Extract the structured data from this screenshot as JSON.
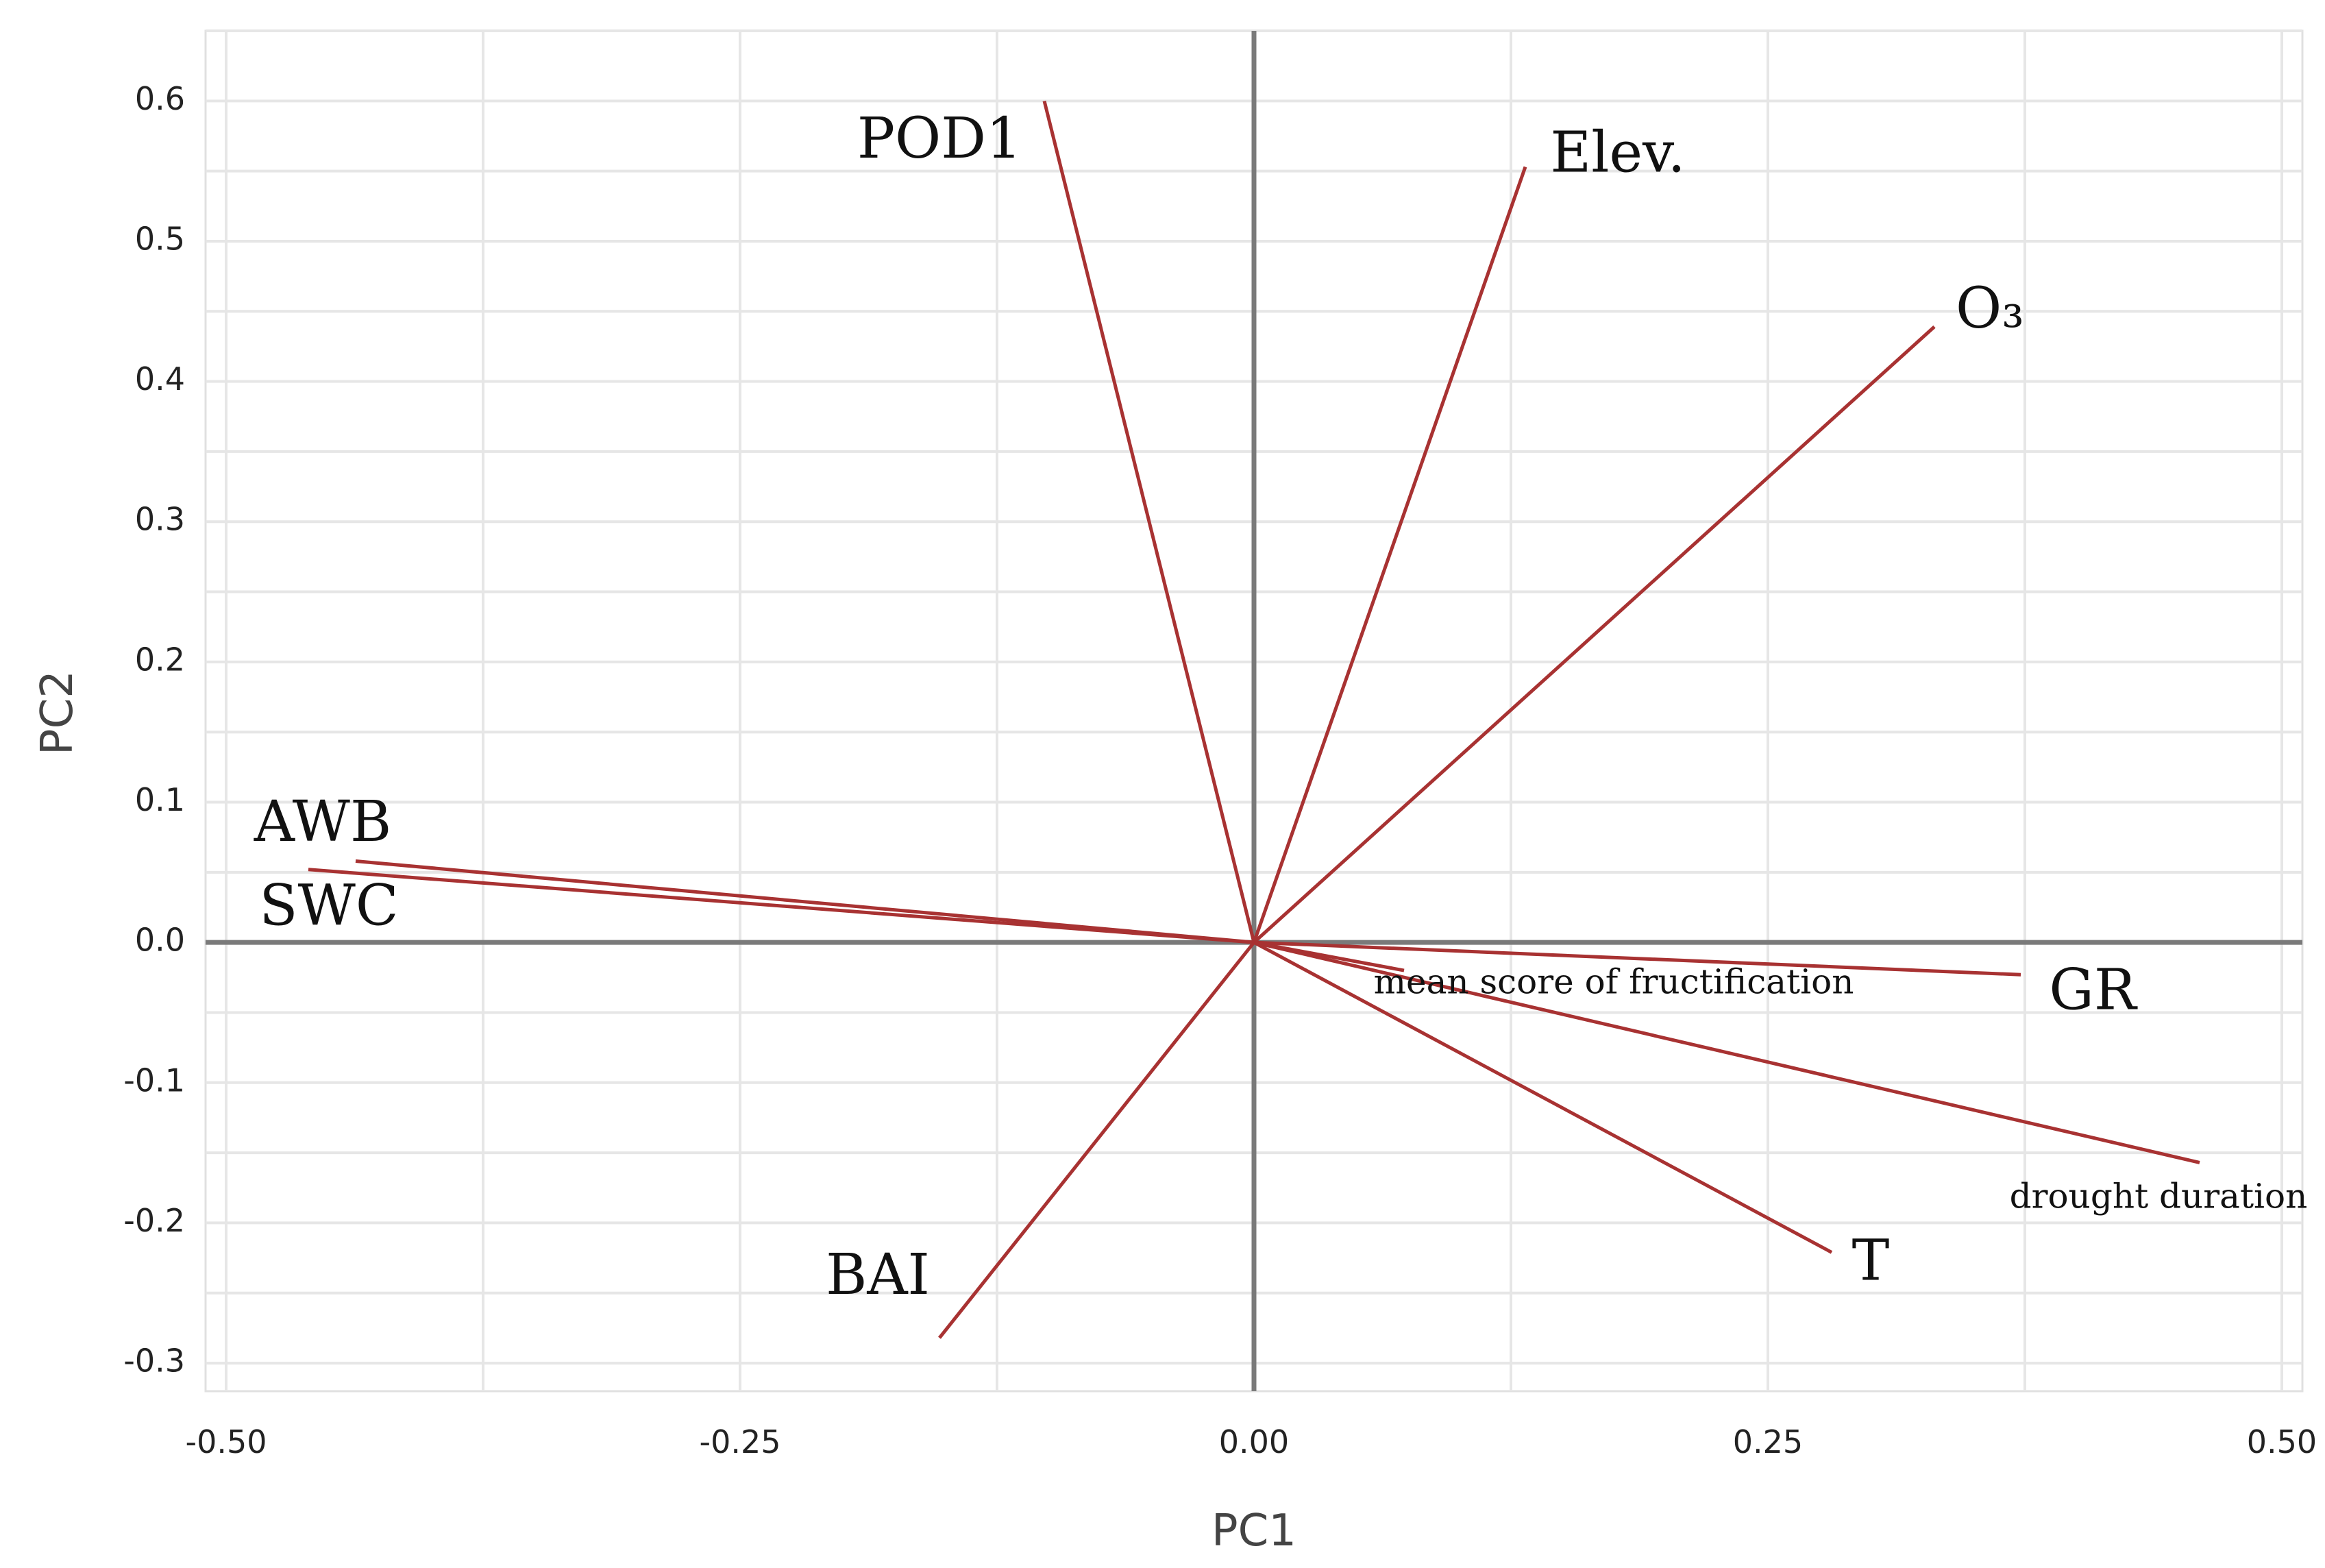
{
  "chart_data": {
    "type": "biplot",
    "xlabel": "PC1",
    "ylabel": "PC2",
    "xlim": [
      -0.51,
      0.51
    ],
    "ylim": [
      -0.32,
      0.65
    ],
    "x_ticks": [
      {
        "value": -0.5,
        "label": "-0.50"
      },
      {
        "value": -0.25,
        "label": "-0.25"
      },
      {
        "value": 0,
        "label": "0.00"
      },
      {
        "value": 0.25,
        "label": "0.25"
      },
      {
        "value": 0.5,
        "label": "0.50"
      }
    ],
    "y_ticks": [
      {
        "value": 0.6,
        "label": "0.6"
      },
      {
        "value": 0.5,
        "label": "0.5"
      },
      {
        "value": 0.4,
        "label": "0.4"
      },
      {
        "value": 0.3,
        "label": "0.3"
      },
      {
        "value": 0.2,
        "label": "0.2"
      },
      {
        "value": 0.1,
        "label": "0.1"
      },
      {
        "value": 0,
        "label": "0.0"
      },
      {
        "value": -0.1,
        "label": "-0.1"
      },
      {
        "value": -0.2,
        "label": "-0.2"
      },
      {
        "value": -0.3,
        "label": "-0.3"
      }
    ],
    "grid": true,
    "vector_color": "#a83232",
    "vectors": [
      {
        "name": "POD1",
        "x": -0.102,
        "y": 0.6,
        "label_x": -0.153,
        "label_y": 0.57,
        "label_size": "large"
      },
      {
        "name": "Elev.",
        "x": 0.132,
        "y": 0.553,
        "label_x": 0.177,
        "label_y": 0.56,
        "label_size": "large"
      },
      {
        "name": "O₃",
        "x": 0.331,
        "y": 0.439,
        "label_x": 0.358,
        "label_y": 0.449,
        "label_size": "large"
      },
      {
        "name": "AWB",
        "x": -0.437,
        "y": 0.058,
        "label_x": -0.453,
        "label_y": 0.083,
        "label_size": "large"
      },
      {
        "name": "SWC",
        "x": -0.46,
        "y": 0.052,
        "label_x": -0.45,
        "label_y": 0.023,
        "label_size": "large"
      },
      {
        "name": "mean score of fructification",
        "x": 0.073,
        "y": -0.02,
        "label_x": 0.175,
        "label_y": -0.03,
        "label_size": "small"
      },
      {
        "name": "GR",
        "x": 0.373,
        "y": -0.023,
        "label_x": 0.408,
        "label_y": -0.037,
        "label_size": "large"
      },
      {
        "name": "drought duration",
        "x": 0.46,
        "y": -0.157,
        "label_x": 0.44,
        "label_y": -0.183,
        "label_size": "small"
      },
      {
        "name": "T",
        "x": 0.281,
        "y": -0.221,
        "label_x": 0.3,
        "label_y": -0.23,
        "label_size": "large"
      },
      {
        "name": "BAI",
        "x": -0.153,
        "y": -0.282,
        "label_x": -0.183,
        "label_y": -0.24,
        "label_size": "large"
      }
    ]
  }
}
